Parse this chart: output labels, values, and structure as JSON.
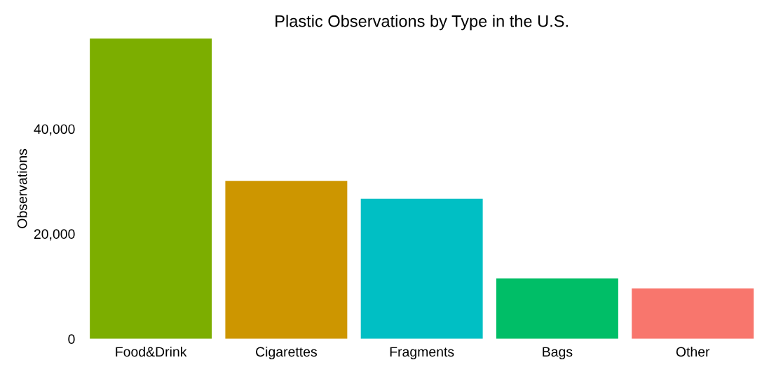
{
  "chart_data": {
    "type": "bar",
    "title": "Plastic Observations by Type in the U.S.",
    "ylabel": "Observations",
    "categories": [
      "Food&Drink",
      "Cigarettes",
      "Fragments",
      "Bags",
      "Other"
    ],
    "values": [
      57200,
      30100,
      26700,
      11500,
      9600
    ],
    "colors": [
      "#7cae00",
      "#cd9600",
      "#00bfc4",
      "#00be67",
      "#f8766d"
    ],
    "ylim": [
      0,
      57200
    ],
    "yticks": [
      0,
      {
        "value": 20000,
        "label": "20,000"
      },
      {
        "value": 40000,
        "label": "40,000"
      }
    ],
    "grid": false
  }
}
